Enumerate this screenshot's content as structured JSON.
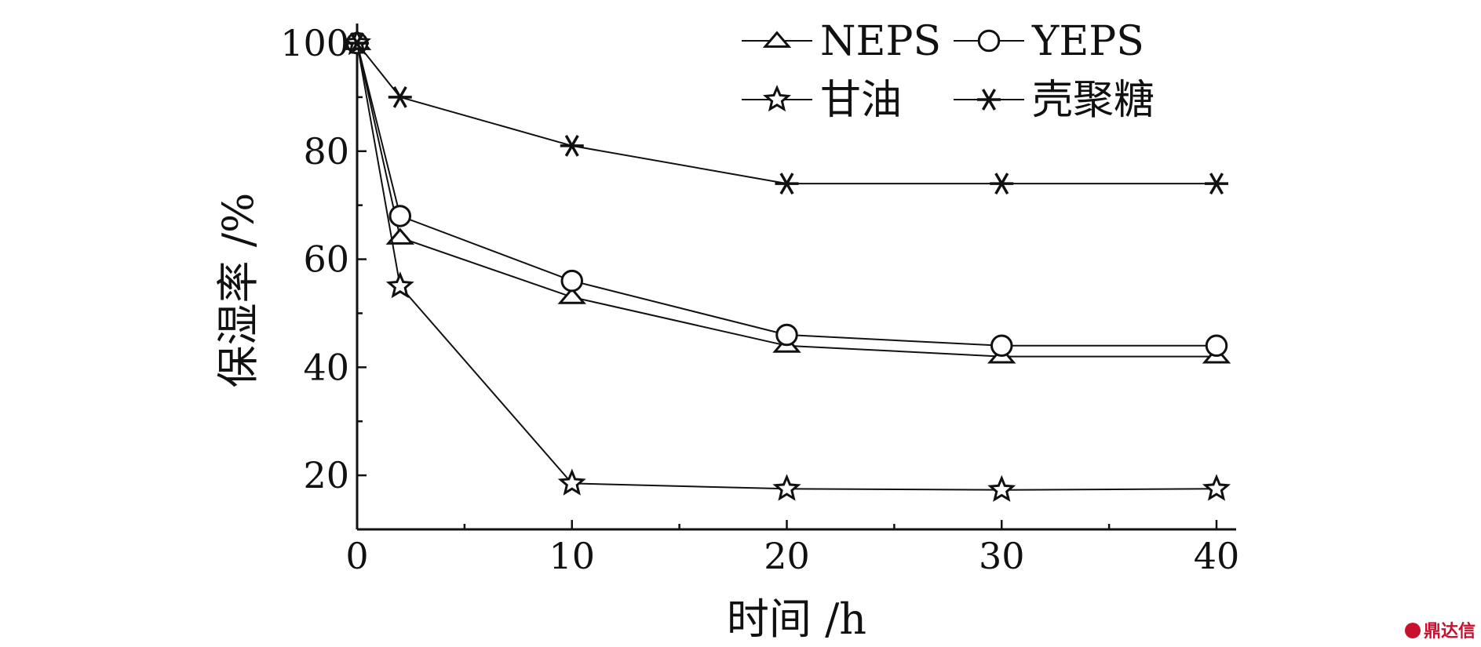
{
  "chart_data": {
    "type": "line",
    "title": "",
    "xlabel": "时间 /h",
    "ylabel": "保湿率 /%",
    "xlim": [
      0,
      41
    ],
    "ylim": [
      10,
      100
    ],
    "x_ticks": [
      0,
      10,
      20,
      30,
      40
    ],
    "y_ticks": [
      20,
      40,
      60,
      80,
      100
    ],
    "legend_position": "top",
    "grid": false,
    "series": [
      {
        "name": "NEPS",
        "marker": "triangle",
        "x": [
          0,
          2,
          10,
          20,
          30,
          40
        ],
        "values": [
          100,
          64,
          53,
          44,
          42,
          42
        ]
      },
      {
        "name": "YEPS",
        "marker": "circle",
        "x": [
          0,
          2,
          10,
          20,
          30,
          40
        ],
        "values": [
          100,
          68,
          56,
          46,
          44,
          44
        ]
      },
      {
        "name": "甘油",
        "marker": "star",
        "x": [
          0,
          2,
          10,
          20,
          30,
          40
        ],
        "values": [
          100,
          55,
          18.5,
          17.5,
          17.3,
          17.5
        ]
      },
      {
        "name": "壳聚糖",
        "marker": "asterisk",
        "x": [
          0,
          2,
          10,
          20,
          30,
          40
        ],
        "values": [
          100,
          90,
          81,
          74,
          74,
          74
        ]
      }
    ]
  },
  "watermark": {
    "text": "鼎达信",
    "color": "#c8102e"
  }
}
